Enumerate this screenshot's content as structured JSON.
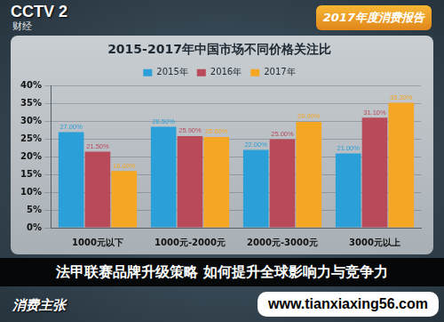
{
  "chart_data": {
    "type": "bar",
    "title": "2015-2017年中国市场不同价格关注比",
    "categories": [
      "1000元以下",
      "1000元-2000元",
      "2000元-3000元",
      "3000元以上"
    ],
    "series": [
      {
        "name": "2015年",
        "color": "#2a9fd8",
        "values": [
          27.0,
          28.5,
          22.0,
          21.0
        ],
        "value_labels": [
          "27.00%",
          "28.50%",
          "22.00%",
          "21.00%"
        ]
      },
      {
        "name": "2016年",
        "color": "#b84a5a",
        "values": [
          21.5,
          25.9,
          25.0,
          31.1
        ],
        "value_labels": [
          "21.50%",
          "25.90%",
          "25.00%",
          "31.10%"
        ]
      },
      {
        "name": "2017年",
        "color": "#f5a623",
        "values": [
          16.0,
          25.6,
          29.9,
          35.3
        ],
        "value_labels": [
          "16.00%",
          "25.60%",
          "29.90%",
          "35.30%"
        ]
      }
    ],
    "ylim": [
      0,
      40
    ],
    "yticks": [
      {
        "value": 0,
        "label": "0%"
      },
      {
        "value": 5,
        "label": "5%"
      },
      {
        "value": 10,
        "label": "10%"
      },
      {
        "value": 15,
        "label": "15%"
      },
      {
        "value": 20,
        "label": "20%"
      },
      {
        "value": 25,
        "label": "25%"
      },
      {
        "value": 30,
        "label": "30%"
      },
      {
        "value": 35,
        "label": "35%"
      },
      {
        "value": 40,
        "label": "40%"
      }
    ],
    "grid": true,
    "legend": "top",
    "data_labels": true,
    "annotations": [
      "CCTV 2",
      "财经",
      "2017年度消费报告",
      "法甲联赛品牌升级策略 如何提升全球影响力与竞争力",
      "消费主张",
      "www.tianxiaxing56.com"
    ]
  }
}
